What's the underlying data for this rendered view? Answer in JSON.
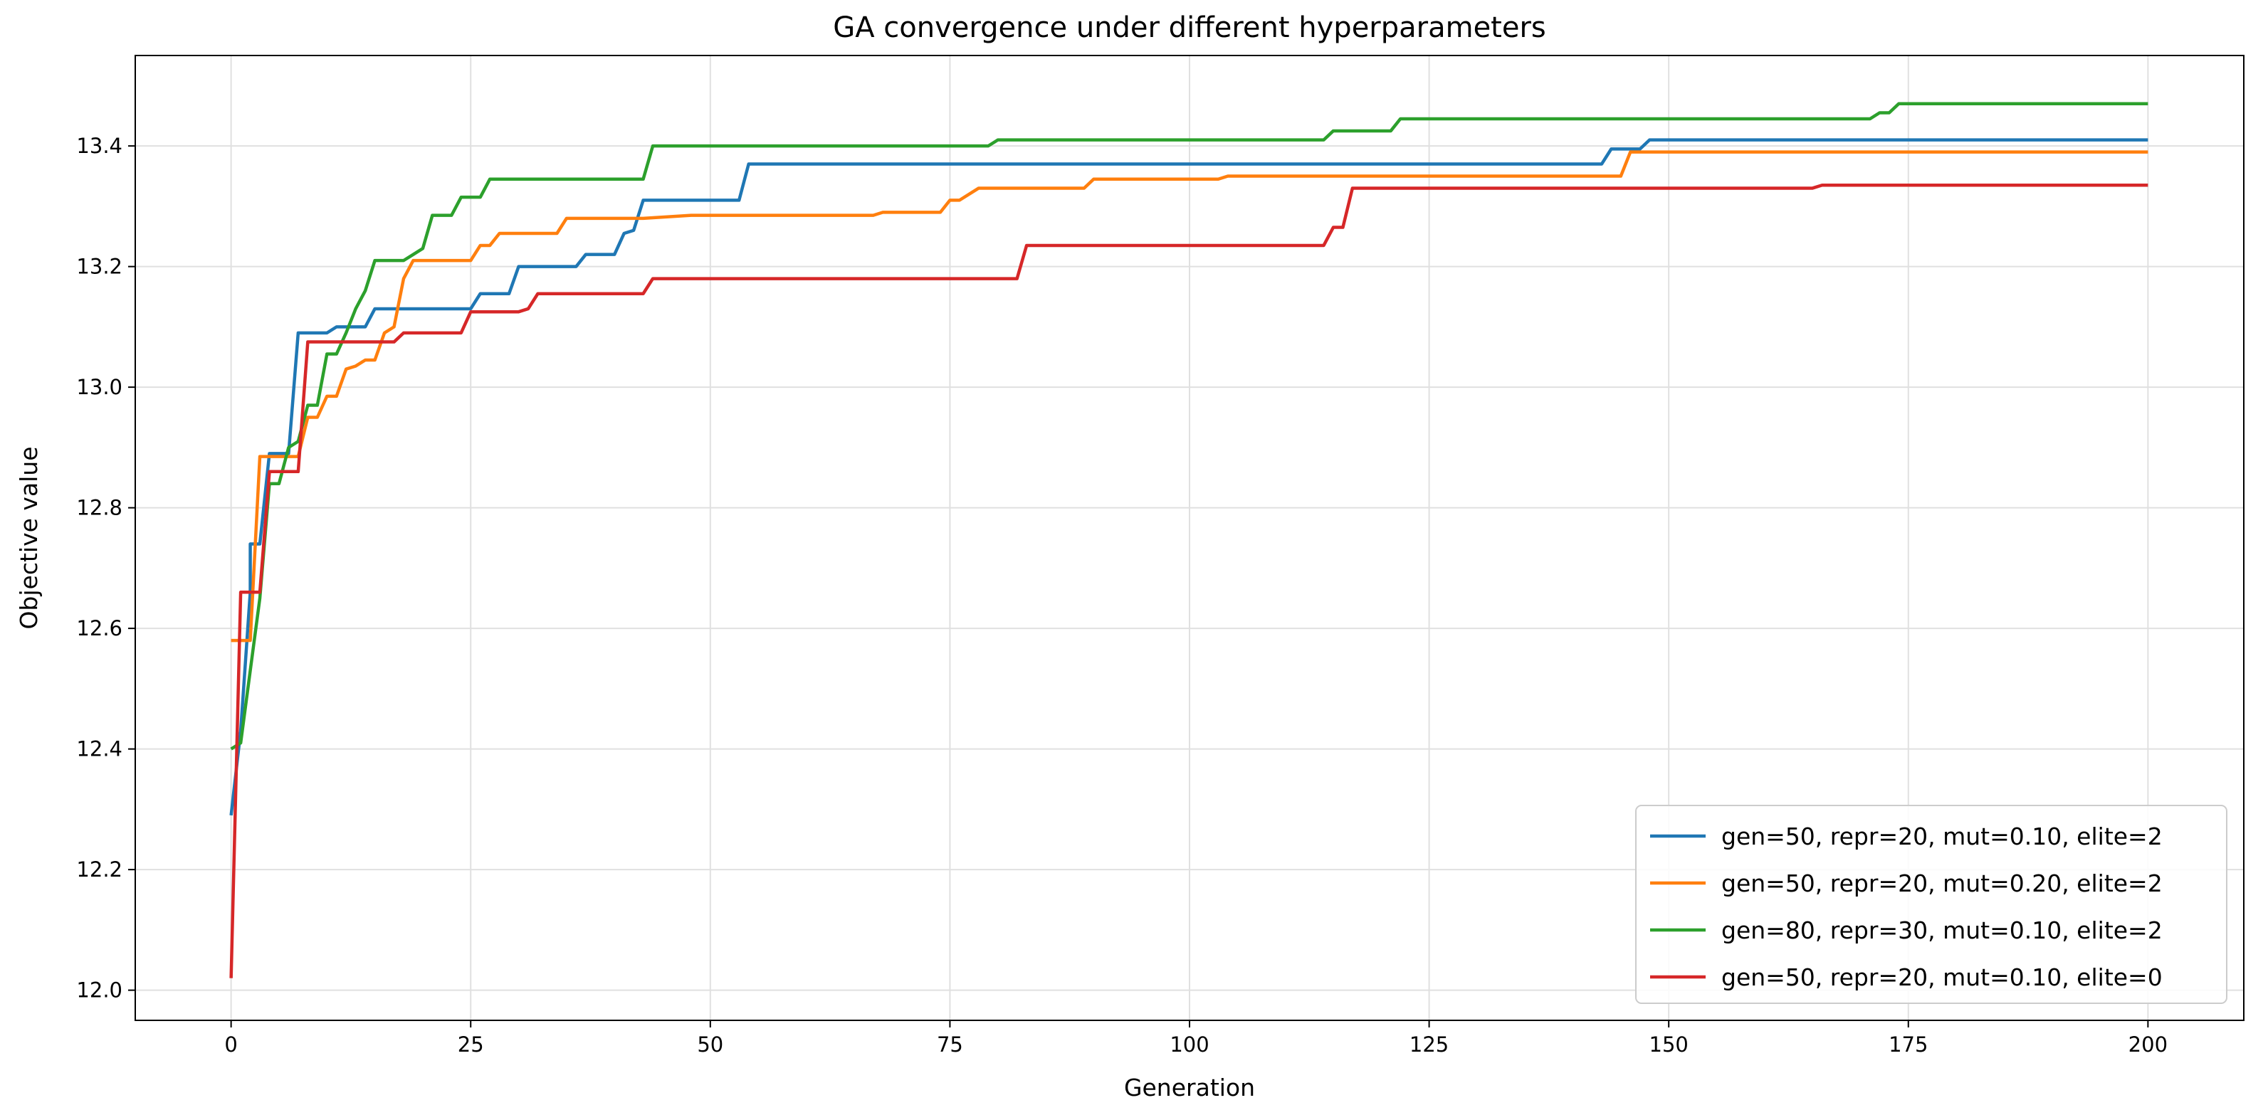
{
  "chart_data": {
    "type": "line",
    "title": "GA convergence under different hyperparameters",
    "xlabel": "Generation",
    "ylabel": "Objective value",
    "xlim": [
      -10,
      210
    ],
    "ylim": [
      11.95,
      13.55
    ],
    "xticks": [
      0,
      25,
      50,
      75,
      100,
      125,
      150,
      175,
      200
    ],
    "yticks": [
      12.0,
      12.2,
      12.4,
      12.6,
      12.8,
      13.0,
      13.2,
      13.4
    ],
    "ytick_labels": [
      "12.0",
      "12.2",
      "12.4",
      "12.6",
      "12.8",
      "13.0",
      "13.2",
      "13.4"
    ],
    "grid": true,
    "legend_position": "lower right",
    "series": [
      {
        "name": "gen=50, repr=20, mut=0.10, elite=2",
        "color": "#1f77b4",
        "points": [
          [
            0,
            12.29
          ],
          [
            1,
            12.43
          ],
          [
            2,
            12.66
          ],
          [
            2,
            12.74
          ],
          [
            3,
            12.74
          ],
          [
            4,
            12.89
          ],
          [
            6,
            12.89
          ],
          [
            7,
            13.09
          ],
          [
            10,
            13.09
          ],
          [
            11,
            13.1
          ],
          [
            14,
            13.1
          ],
          [
            15,
            13.13
          ],
          [
            25,
            13.13
          ],
          [
            26,
            13.155
          ],
          [
            29,
            13.155
          ],
          [
            30,
            13.2
          ],
          [
            36,
            13.2
          ],
          [
            37,
            13.22
          ],
          [
            40,
            13.22
          ],
          [
            41,
            13.255
          ],
          [
            42,
            13.26
          ],
          [
            43,
            13.31
          ],
          [
            53,
            13.31
          ],
          [
            54,
            13.37
          ],
          [
            143,
            13.37
          ],
          [
            144,
            13.395
          ],
          [
            147,
            13.395
          ],
          [
            148,
            13.41
          ],
          [
            200,
            13.41
          ]
        ]
      },
      {
        "name": "gen=50, repr=20, mut=0.20, elite=2",
        "color": "#ff7f0e",
        "points": [
          [
            0,
            12.58
          ],
          [
            1,
            12.58
          ],
          [
            2,
            12.58
          ],
          [
            3,
            12.885
          ],
          [
            7,
            12.885
          ],
          [
            8,
            12.95
          ],
          [
            9,
            12.95
          ],
          [
            10,
            12.985
          ],
          [
            11,
            12.985
          ],
          [
            12,
            13.03
          ],
          [
            13,
            13.035
          ],
          [
            14,
            13.045
          ],
          [
            15,
            13.045
          ],
          [
            16,
            13.09
          ],
          [
            17,
            13.1
          ],
          [
            18,
            13.18
          ],
          [
            19,
            13.21
          ],
          [
            25,
            13.21
          ],
          [
            26,
            13.235
          ],
          [
            27,
            13.235
          ],
          [
            28,
            13.255
          ],
          [
            34,
            13.255
          ],
          [
            35,
            13.28
          ],
          [
            43,
            13.28
          ],
          [
            48,
            13.285
          ],
          [
            67,
            13.285
          ],
          [
            68,
            13.29
          ],
          [
            74,
            13.29
          ],
          [
            75,
            13.31
          ],
          [
            76,
            13.31
          ],
          [
            78,
            13.33
          ],
          [
            89,
            13.33
          ],
          [
            90,
            13.345
          ],
          [
            103,
            13.345
          ],
          [
            104,
            13.35
          ],
          [
            145,
            13.35
          ],
          [
            146,
            13.39
          ],
          [
            200,
            13.39
          ]
        ]
      },
      {
        "name": "gen=80, repr=30, mut=0.10, elite=2",
        "color": "#2ca02c",
        "points": [
          [
            0,
            12.4
          ],
          [
            1,
            12.41
          ],
          [
            2,
            12.53
          ],
          [
            3,
            12.65
          ],
          [
            4,
            12.84
          ],
          [
            5,
            12.84
          ],
          [
            6,
            12.9
          ],
          [
            7,
            12.91
          ],
          [
            8,
            12.97
          ],
          [
            9,
            12.97
          ],
          [
            10,
            13.055
          ],
          [
            11,
            13.055
          ],
          [
            12,
            13.09
          ],
          [
            13,
            13.13
          ],
          [
            14,
            13.16
          ],
          [
            15,
            13.21
          ],
          [
            18,
            13.21
          ],
          [
            19,
            13.22
          ],
          [
            20,
            13.23
          ],
          [
            21,
            13.285
          ],
          [
            23,
            13.285
          ],
          [
            24,
            13.315
          ],
          [
            26,
            13.315
          ],
          [
            27,
            13.345
          ],
          [
            43,
            13.345
          ],
          [
            44,
            13.4
          ],
          [
            79,
            13.4
          ],
          [
            80,
            13.41
          ],
          [
            114,
            13.41
          ],
          [
            115,
            13.425
          ],
          [
            121,
            13.425
          ],
          [
            122,
            13.445
          ],
          [
            171,
            13.445
          ],
          [
            172,
            13.455
          ],
          [
            173,
            13.455
          ],
          [
            174,
            13.47
          ],
          [
            200,
            13.47
          ]
        ]
      },
      {
        "name": "gen=50, repr=20, mut=0.10, elite=0",
        "color": "#d62728",
        "points": [
          [
            0,
            12.02
          ],
          [
            1,
            12.66
          ],
          [
            2,
            12.66
          ],
          [
            3,
            12.66
          ],
          [
            4,
            12.86
          ],
          [
            7,
            12.86
          ],
          [
            8,
            13.075
          ],
          [
            17,
            13.075
          ],
          [
            18,
            13.09
          ],
          [
            24,
            13.09
          ],
          [
            25,
            13.125
          ],
          [
            30,
            13.125
          ],
          [
            31,
            13.13
          ],
          [
            32,
            13.155
          ],
          [
            43,
            13.155
          ],
          [
            44,
            13.18
          ],
          [
            82,
            13.18
          ],
          [
            83,
            13.235
          ],
          [
            114,
            13.235
          ],
          [
            115,
            13.265
          ],
          [
            116,
            13.265
          ],
          [
            117,
            13.33
          ],
          [
            165,
            13.33
          ],
          [
            166,
            13.335
          ],
          [
            200,
            13.335
          ]
        ]
      }
    ]
  }
}
